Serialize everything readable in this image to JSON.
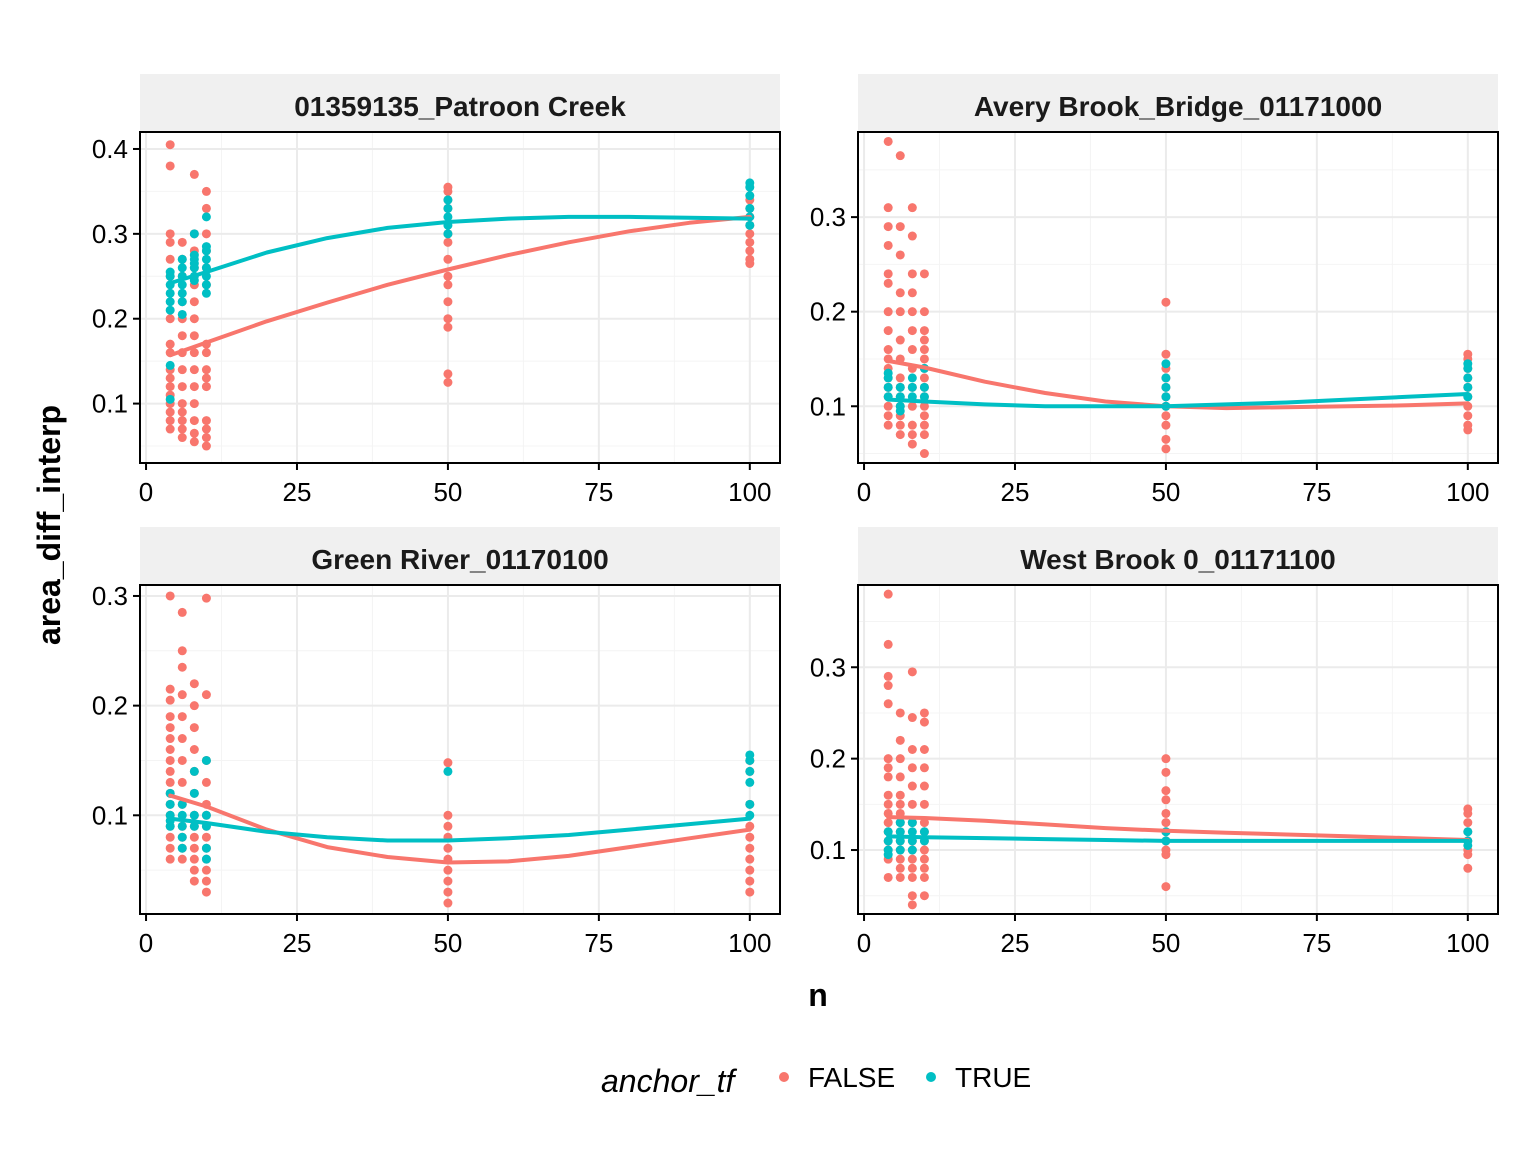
{
  "chart_data": {
    "type": "scatter",
    "xlabel": "n",
    "ylabel": "area_diff_interp",
    "legend": {
      "title": "anchor_tf",
      "position": "bottom",
      "entries": [
        {
          "label": "FALSE",
          "color": "#F8766D"
        },
        {
          "label": "TRUE",
          "color": "#00BFC4"
        }
      ]
    },
    "grid": true,
    "x_ticks": [
      0,
      25,
      50,
      75,
      100
    ],
    "xlim": [
      -1,
      105
    ],
    "panels": [
      {
        "title": "01359135_Patroon Creek",
        "ylim": [
          0.03,
          0.42
        ],
        "y_ticks": [
          0.1,
          0.2,
          0.3,
          0.4
        ],
        "y_tick_labels": [
          "0.1",
          "0.2",
          "0.3",
          "0.4"
        ],
        "points_false": [
          {
            "x": 4,
            "y": [
              0.405,
              0.38,
              0.3,
              0.29,
              0.27,
              0.25,
              0.2,
              0.17,
              0.16,
              0.14,
              0.13,
              0.12,
              0.11,
              0.1,
              0.09,
              0.08,
              0.07
            ]
          },
          {
            "x": 6,
            "y": [
              0.29,
              0.27,
              0.25,
              0.22,
              0.2,
              0.18,
              0.16,
              0.14,
              0.12,
              0.1,
              0.09,
              0.08,
              0.07,
              0.06
            ]
          },
          {
            "x": 8,
            "y": [
              0.37,
              0.3,
              0.28,
              0.26,
              0.24,
              0.22,
              0.2,
              0.18,
              0.16,
              0.14,
              0.12,
              0.1,
              0.08,
              0.065,
              0.055
            ]
          },
          {
            "x": 10,
            "y": [
              0.35,
              0.33,
              0.3,
              0.28,
              0.26,
              0.24,
              0.17,
              0.16,
              0.14,
              0.13,
              0.12,
              0.08,
              0.07,
              0.06,
              0.05
            ]
          },
          {
            "x": 50,
            "y": [
              0.355,
              0.35,
              0.34,
              0.33,
              0.3,
              0.29,
              0.27,
              0.25,
              0.24,
              0.22,
              0.2,
              0.19,
              0.135,
              0.125
            ]
          },
          {
            "x": 100,
            "y": [
              0.34,
              0.33,
              0.32,
              0.31,
              0.3,
              0.29,
              0.28,
              0.27,
              0.265
            ]
          }
        ],
        "points_true": [
          {
            "x": 4,
            "y": [
              0.255,
              0.25,
              0.24,
              0.23,
              0.22,
              0.21,
              0.145,
              0.105
            ]
          },
          {
            "x": 6,
            "y": [
              0.27,
              0.26,
              0.25,
              0.24,
              0.23,
              0.22,
              0.205
            ]
          },
          {
            "x": 8,
            "y": [
              0.3,
              0.275,
              0.27,
              0.265,
              0.26,
              0.25,
              0.245
            ]
          },
          {
            "x": 10,
            "y": [
              0.32,
              0.285,
              0.28,
              0.27,
              0.26,
              0.25,
              0.24,
              0.23
            ]
          },
          {
            "x": 50,
            "y": [
              0.34,
              0.33,
              0.32,
              0.31,
              0.3
            ]
          },
          {
            "x": 100,
            "y": [
              0.36,
              0.355,
              0.345,
              0.33,
              0.32,
              0.31
            ]
          }
        ],
        "smooth_false": [
          [
            4,
            0.157
          ],
          [
            10,
            0.172
          ],
          [
            20,
            0.197
          ],
          [
            30,
            0.219
          ],
          [
            40,
            0.24
          ],
          [
            50,
            0.258
          ],
          [
            60,
            0.275
          ],
          [
            70,
            0.29
          ],
          [
            80,
            0.303
          ],
          [
            90,
            0.313
          ],
          [
            100,
            0.32
          ]
        ],
        "smooth_true": [
          [
            4,
            0.242
          ],
          [
            10,
            0.255
          ],
          [
            20,
            0.278
          ],
          [
            30,
            0.295
          ],
          [
            40,
            0.307
          ],
          [
            50,
            0.314
          ],
          [
            60,
            0.318
          ],
          [
            70,
            0.32
          ],
          [
            80,
            0.32
          ],
          [
            90,
            0.319
          ],
          [
            100,
            0.318
          ]
        ]
      },
      {
        "title": "Avery Brook_Bridge_01171000",
        "ylim": [
          0.04,
          0.39
        ],
        "y_ticks": [
          0.1,
          0.2,
          0.3
        ],
        "y_tick_labels": [
          "0.1",
          "0.2",
          "0.3"
        ],
        "points_false": [
          {
            "x": 4,
            "y": [
              0.38,
              0.31,
              0.29,
              0.27,
              0.24,
              0.23,
              0.2,
              0.18,
              0.16,
              0.15,
              0.14,
              0.13,
              0.12,
              0.11,
              0.1,
              0.09,
              0.08
            ]
          },
          {
            "x": 6,
            "y": [
              0.365,
              0.29,
              0.26,
              0.22,
              0.2,
              0.17,
              0.15,
              0.13,
              0.12,
              0.11,
              0.1,
              0.09,
              0.08,
              0.07
            ]
          },
          {
            "x": 8,
            "y": [
              0.31,
              0.28,
              0.24,
              0.22,
              0.2,
              0.18,
              0.16,
              0.14,
              0.12,
              0.1,
              0.08,
              0.07,
              0.06
            ]
          },
          {
            "x": 10,
            "y": [
              0.24,
              0.2,
              0.18,
              0.17,
              0.16,
              0.15,
              0.14,
              0.13,
              0.12,
              0.11,
              0.1,
              0.09,
              0.08,
              0.07,
              0.05
            ]
          },
          {
            "x": 50,
            "y": [
              0.21,
              0.155,
              0.14,
              0.13,
              0.12,
              0.11,
              0.1,
              0.09,
              0.08,
              0.065,
              0.055
            ]
          },
          {
            "x": 100,
            "y": [
              0.155,
              0.15,
              0.14,
              0.13,
              0.12,
              0.11,
              0.1,
              0.09,
              0.08,
              0.075
            ]
          }
        ],
        "points_true": [
          {
            "x": 4,
            "y": [
              0.135,
              0.13,
              0.12,
              0.11
            ]
          },
          {
            "x": 6,
            "y": [
              0.12,
              0.11,
              0.1,
              0.095
            ]
          },
          {
            "x": 8,
            "y": [
              0.13,
              0.12,
              0.11
            ]
          },
          {
            "x": 10,
            "y": [
              0.14,
              0.12,
              0.11
            ]
          },
          {
            "x": 50,
            "y": [
              0.145,
              0.13,
              0.12,
              0.11,
              0.1
            ]
          },
          {
            "x": 100,
            "y": [
              0.145,
              0.14,
              0.13,
              0.12,
              0.11
            ]
          }
        ],
        "smooth_false": [
          [
            4,
            0.148
          ],
          [
            10,
            0.141
          ],
          [
            20,
            0.126
          ],
          [
            30,
            0.114
          ],
          [
            40,
            0.105
          ],
          [
            50,
            0.1
          ],
          [
            60,
            0.098
          ],
          [
            70,
            0.099
          ],
          [
            80,
            0.1
          ],
          [
            90,
            0.101
          ],
          [
            100,
            0.103
          ]
        ],
        "smooth_true": [
          [
            4,
            0.107
          ],
          [
            10,
            0.105
          ],
          [
            20,
            0.102
          ],
          [
            30,
            0.1
          ],
          [
            40,
            0.1
          ],
          [
            50,
            0.1
          ],
          [
            60,
            0.102
          ],
          [
            70,
            0.104
          ],
          [
            80,
            0.107
          ],
          [
            90,
            0.11
          ],
          [
            100,
            0.113
          ]
        ]
      },
      {
        "title": "Green River_01170100",
        "ylim": [
          0.01,
          0.31
        ],
        "y_ticks": [
          0.1,
          0.2,
          0.3
        ],
        "y_tick_labels": [
          "0.1",
          "0.2",
          "0.3"
        ],
        "points_false": [
          {
            "x": 4,
            "y": [
              0.3,
              0.215,
              0.205,
              0.19,
              0.18,
              0.17,
              0.16,
              0.15,
              0.14,
              0.13,
              0.12,
              0.11,
              0.1,
              0.09,
              0.08,
              0.07,
              0.06
            ]
          },
          {
            "x": 6,
            "y": [
              0.285,
              0.25,
              0.235,
              0.21,
              0.19,
              0.17,
              0.15,
              0.13,
              0.11,
              0.09,
              0.08,
              0.07,
              0.06
            ]
          },
          {
            "x": 8,
            "y": [
              0.22,
              0.2,
              0.18,
              0.16,
              0.14,
              0.12,
              0.1,
              0.09,
              0.08,
              0.07,
              0.06,
              0.05,
              0.04
            ]
          },
          {
            "x": 10,
            "y": [
              0.298,
              0.21,
              0.15,
              0.13,
              0.11,
              0.1,
              0.09,
              0.08,
              0.07,
              0.06,
              0.05,
              0.04,
              0.03
            ]
          },
          {
            "x": 50,
            "y": [
              0.148,
              0.1,
              0.09,
              0.08,
              0.07,
              0.06,
              0.05,
              0.04,
              0.03,
              0.02
            ]
          },
          {
            "x": 100,
            "y": [
              0.15,
              0.14,
              0.11,
              0.09,
              0.08,
              0.07,
              0.06,
              0.05,
              0.04,
              0.03
            ]
          }
        ],
        "points_true": [
          {
            "x": 4,
            "y": [
              0.12,
              0.11,
              0.1,
              0.095,
              0.09
            ]
          },
          {
            "x": 6,
            "y": [
              0.11,
              0.1,
              0.09,
              0.08,
              0.07
            ]
          },
          {
            "x": 8,
            "y": [
              0.14,
              0.12,
              0.1,
              0.09
            ]
          },
          {
            "x": 10,
            "y": [
              0.15,
              0.1,
              0.09,
              0.07,
              0.06
            ]
          },
          {
            "x": 50,
            "y": [
              0.14
            ]
          },
          {
            "x": 100,
            "y": [
              0.155,
              0.15,
              0.14,
              0.13,
              0.11,
              0.1
            ]
          }
        ],
        "smooth_false": [
          [
            4,
            0.118
          ],
          [
            10,
            0.108
          ],
          [
            20,
            0.087
          ],
          [
            30,
            0.071
          ],
          [
            40,
            0.062
          ],
          [
            50,
            0.057
          ],
          [
            60,
            0.058
          ],
          [
            70,
            0.063
          ],
          [
            80,
            0.071
          ],
          [
            90,
            0.079
          ],
          [
            100,
            0.087
          ]
        ],
        "smooth_true": [
          [
            4,
            0.097
          ],
          [
            10,
            0.093
          ],
          [
            20,
            0.085
          ],
          [
            30,
            0.08
          ],
          [
            40,
            0.077
          ],
          [
            50,
            0.077
          ],
          [
            60,
            0.079
          ],
          [
            70,
            0.082
          ],
          [
            80,
            0.087
          ],
          [
            90,
            0.092
          ],
          [
            100,
            0.097
          ]
        ]
      },
      {
        "title": "West Brook 0_01171100",
        "ylim": [
          0.03,
          0.39
        ],
        "y_ticks": [
          0.1,
          0.2,
          0.3
        ],
        "y_tick_labels": [
          "0.1",
          "0.2",
          "0.3"
        ],
        "points_false": [
          {
            "x": 4,
            "y": [
              0.38,
              0.325,
              0.29,
              0.28,
              0.26,
              0.2,
              0.19,
              0.18,
              0.16,
              0.15,
              0.14,
              0.13,
              0.12,
              0.11,
              0.1,
              0.09,
              0.07
            ]
          },
          {
            "x": 6,
            "y": [
              0.25,
              0.22,
              0.2,
              0.18,
              0.16,
              0.15,
              0.14,
              0.13,
              0.12,
              0.11,
              0.1,
              0.09,
              0.08,
              0.07
            ]
          },
          {
            "x": 8,
            "y": [
              0.295,
              0.245,
              0.21,
              0.19,
              0.17,
              0.15,
              0.13,
              0.11,
              0.1,
              0.09,
              0.08,
              0.07,
              0.05,
              0.04
            ]
          },
          {
            "x": 10,
            "y": [
              0.25,
              0.24,
              0.21,
              0.19,
              0.17,
              0.15,
              0.13,
              0.12,
              0.11,
              0.1,
              0.09,
              0.08,
              0.07,
              0.05
            ]
          },
          {
            "x": 50,
            "y": [
              0.2,
              0.185,
              0.165,
              0.155,
              0.14,
              0.13,
              0.12,
              0.11,
              0.1,
              0.095,
              0.06
            ]
          },
          {
            "x": 100,
            "y": [
              0.145,
              0.14,
              0.13,
              0.12,
              0.11,
              0.1,
              0.095,
              0.08
            ]
          }
        ],
        "points_true": [
          {
            "x": 4,
            "y": [
              0.12,
              0.11,
              0.1,
              0.095
            ]
          },
          {
            "x": 6,
            "y": [
              0.13,
              0.12,
              0.11,
              0.1
            ]
          },
          {
            "x": 8,
            "y": [
              0.13,
              0.12,
              0.11,
              0.1
            ]
          },
          {
            "x": 10,
            "y": [
              0.12,
              0.11
            ]
          },
          {
            "x": 50,
            "y": [
              0.12,
              0.11
            ]
          },
          {
            "x": 100,
            "y": [
              0.12,
              0.11,
              0.105
            ]
          }
        ],
        "smooth_false": [
          [
            4,
            0.136
          ],
          [
            10,
            0.135
          ],
          [
            20,
            0.132
          ],
          [
            30,
            0.128
          ],
          [
            40,
            0.124
          ],
          [
            50,
            0.121
          ],
          [
            60,
            0.119
          ],
          [
            70,
            0.117
          ],
          [
            80,
            0.115
          ],
          [
            90,
            0.113
          ],
          [
            100,
            0.111
          ]
        ],
        "smooth_true": [
          [
            4,
            0.115
          ],
          [
            10,
            0.114
          ],
          [
            20,
            0.113
          ],
          [
            30,
            0.112
          ],
          [
            40,
            0.111
          ],
          [
            50,
            0.11
          ],
          [
            60,
            0.11
          ],
          [
            70,
            0.11
          ],
          [
            80,
            0.11
          ],
          [
            90,
            0.11
          ],
          [
            100,
            0.11
          ]
        ]
      }
    ]
  }
}
